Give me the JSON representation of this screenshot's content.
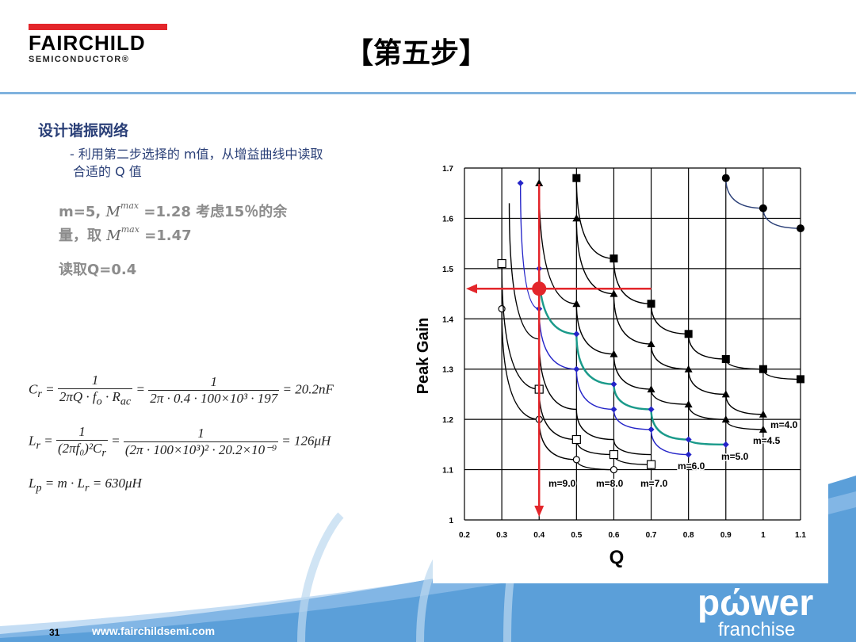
{
  "header": {
    "logo_name": "FAIRCHILD",
    "logo_sub": "SEMICONDUCTOR®",
    "title": "【第五步】"
  },
  "content": {
    "heading": "设计谐振网络",
    "bullet_line1": "- 利用第二步选择的 m值，从增益曲线中读取",
    "bullet_line2": "合适的 Q 值",
    "p1_a": "m=5,",
    "p1_sym": "M",
    "p1_sup": "max",
    "p1_b": "=1.28 考虑15％的余",
    "p2_a": "量，取",
    "p2_sym": "M",
    "p2_sup": "max",
    "p2_b": "=1.47",
    "p3": "读取Q=0.4"
  },
  "equations": {
    "cr_lhs": "C",
    "cr_sub": "r",
    "cr_n1": "1",
    "cr_d1": "2πQ · f",
    "cr_d1b": "o",
    "cr_d1c": " · R",
    "cr_d1d": "ac",
    "cr_n2": "1",
    "cr_d2": "2π · 0.4 · 100×10³ · 197",
    "cr_res": "= 20.2nF",
    "lr_lhs": "L",
    "lr_sub": "r",
    "lr_n1": "1",
    "lr_d1": "(2πf₀)²C",
    "lr_d1b": "r",
    "lr_n2": "1",
    "lr_d2": "(2π · 100×10³)² · 20.2×10⁻⁹",
    "lr_res": "= 126μH",
    "lp_line": "L",
    "lp_sub": "p",
    "lp_rest": " = m · L",
    "lp_sub2": "r",
    "lp_res": " = 630μH"
  },
  "footer": {
    "page_number": "31",
    "url": "www.fairchildsemi.com",
    "brand_the": "the",
    "brand_power": "pώwer",
    "brand_franchise": "franchise"
  },
  "colors": {
    "accent_line": "#7fb2de",
    "logo_red": "#e3262b",
    "heading_blue": "#2a3f77",
    "marker_red": "#e3262b",
    "curve_teal": "#1a9a8a",
    "curve_blue": "#2424c8"
  },
  "chart_data": {
    "type": "line",
    "title": "",
    "xlabel": "Q",
    "ylabel": "Peak Gain",
    "xlim": [
      0.2,
      1.1
    ],
    "ylim": [
      1.0,
      1.7
    ],
    "x_ticks": [
      "0.2",
      "0.3",
      "0.4",
      "0.5",
      "0.6",
      "0.7",
      "0.8",
      "0.9",
      "1",
      "1.1"
    ],
    "y_ticks": [
      "1",
      "1.1",
      "1.2",
      "1.3",
      "1.4",
      "1.5",
      "1.6",
      "1.7"
    ],
    "grid": true,
    "series": [
      {
        "name": "m=9.0",
        "color": "#000000",
        "marker": "circle-open",
        "x": [
          0.3,
          0.4,
          0.5,
          0.6
        ],
        "y": [
          1.42,
          1.2,
          1.12,
          1.1
        ]
      },
      {
        "name": "m=8.0",
        "color": "#000000",
        "marker": "square-open",
        "x": [
          0.3,
          0.4,
          0.5,
          0.6,
          0.7
        ],
        "y": [
          1.51,
          1.26,
          1.16,
          1.13,
          1.11
        ]
      },
      {
        "name": "m=7.0",
        "color": "#000000",
        "marker": "none",
        "x": [
          0.32,
          0.4,
          0.5,
          0.6,
          0.7
        ],
        "y": [
          1.63,
          1.36,
          1.22,
          1.16,
          1.13
        ]
      },
      {
        "name": "m=6.0",
        "color": "#2424c8",
        "marker": "diamond-filled",
        "x": [
          0.35,
          0.4,
          0.5,
          0.6,
          0.7,
          0.8
        ],
        "y": [
          1.67,
          1.42,
          1.3,
          1.22,
          1.18,
          1.13
        ]
      },
      {
        "name": "m=5.0",
        "color": "#1a9a8a",
        "marker": "diamond-filled",
        "x": [
          0.4,
          0.5,
          0.6,
          0.7,
          0.8,
          0.9
        ],
        "y": [
          1.5,
          1.37,
          1.27,
          1.22,
          1.16,
          1.15
        ]
      },
      {
        "name": "m=4.5",
        "color": "#000000",
        "marker": "triangle-filled",
        "x": [
          0.4,
          0.5,
          0.6,
          0.7,
          0.8,
          0.9,
          1.0
        ],
        "y": [
          1.67,
          1.43,
          1.33,
          1.26,
          1.23,
          1.2,
          1.18
        ]
      },
      {
        "name": "m=4.0",
        "color": "#000000",
        "marker": "triangle-filled",
        "x": [
          0.5,
          0.6,
          0.7,
          0.8,
          0.9,
          1.0
        ],
        "y": [
          1.6,
          1.45,
          1.35,
          1.3,
          1.25,
          1.21
        ]
      },
      {
        "name": "",
        "color": "#000000",
        "marker": "square-filled",
        "x": [
          0.5,
          0.6,
          0.7,
          0.8,
          0.9,
          1.0,
          1.1
        ],
        "y": [
          1.68,
          1.52,
          1.43,
          1.37,
          1.32,
          1.3,
          1.28
        ]
      },
      {
        "name": "",
        "color": "#2a3f77",
        "marker": "circle-filled",
        "x": [
          0.9,
          1.0,
          1.1
        ],
        "y": [
          1.68,
          1.62,
          1.58
        ]
      }
    ],
    "annotations": [
      "m=9.0",
      "m=8.0",
      "m=7.0",
      "m=6.0",
      "m=5.0",
      "m=4.5",
      "m=4.0"
    ],
    "operating_point": {
      "x": 0.4,
      "y": 1.46,
      "color": "#e3262b"
    }
  }
}
